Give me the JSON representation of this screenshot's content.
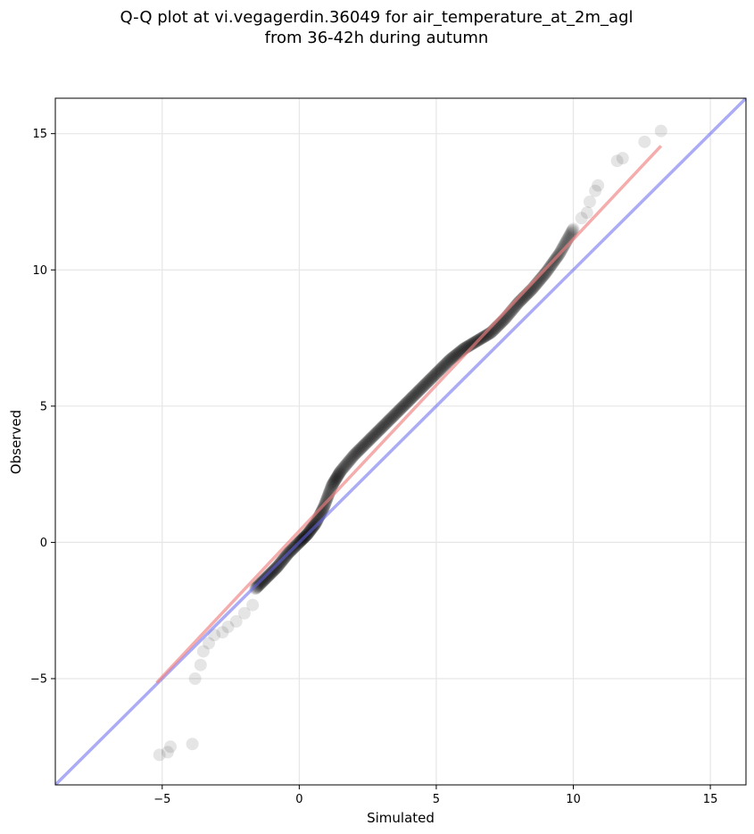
{
  "chart_data": {
    "type": "scatter",
    "title_lines": [
      "Q-Q plot at vi.vegagerdin.36049 for air_temperature_at_2m_agl",
      "from 36-42h during autumn"
    ],
    "xlabel": "Simulated",
    "ylabel": "Observed",
    "xlim": [
      -8.9,
      16.3
    ],
    "ylim": [
      -8.9,
      16.3
    ],
    "x_ticks": [
      -5,
      0,
      5,
      10,
      15
    ],
    "y_ticks": [
      -5,
      0,
      5,
      10,
      15
    ],
    "x_tick_labels": [
      "−5",
      "0",
      "5",
      "10",
      "15"
    ],
    "y_tick_labels": [
      "−5",
      "0",
      "5",
      "10",
      "15"
    ],
    "grid": true,
    "point_color": "#000000",
    "reference_line": {
      "slope": 1,
      "intercept": 0,
      "color": "#6666ee"
    },
    "fit_line": {
      "x": [
        -5.2,
        13.2
      ],
      "y": [
        -5.15,
        14.55
      ],
      "color": "#f08080"
    },
    "outlier_points": {
      "x": [
        -5.1,
        -4.8,
        -4.7,
        -3.9,
        -3.8,
        -3.6,
        -3.5,
        -3.3,
        -3.1,
        -2.8,
        -2.6,
        -2.3,
        -2.0,
        -1.7,
        10.3,
        10.5,
        10.6,
        10.8,
        10.9,
        11.6,
        11.8,
        12.6,
        13.2
      ],
      "y": [
        -7.8,
        -7.7,
        -7.5,
        -7.4,
        -5.0,
        -4.5,
        -4.0,
        -3.7,
        -3.4,
        -3.3,
        -3.1,
        -2.9,
        -2.6,
        -2.3,
        11.9,
        12.1,
        12.5,
        12.9,
        13.1,
        14.0,
        14.1,
        14.7,
        15.1
      ]
    },
    "dense_quantiles": {
      "x": [
        -1.6,
        -1.2,
        -0.8,
        -0.4,
        0.0,
        0.3,
        0.6,
        0.9,
        1.2,
        1.5,
        2.0,
        2.5,
        3.0,
        3.5,
        4.0,
        4.5,
        5.0,
        5.5,
        6.0,
        6.5,
        7.0,
        7.5,
        8.0,
        8.5,
        9.0,
        9.5,
        10.0
      ],
      "y": [
        -1.7,
        -1.3,
        -0.9,
        -0.4,
        0.0,
        0.3,
        0.7,
        1.3,
        2.1,
        2.6,
        3.2,
        3.7,
        4.2,
        4.7,
        5.2,
        5.7,
        6.2,
        6.7,
        7.1,
        7.4,
        7.7,
        8.2,
        8.8,
        9.3,
        9.9,
        10.6,
        11.5
      ]
    },
    "dense_point_count": 520
  }
}
